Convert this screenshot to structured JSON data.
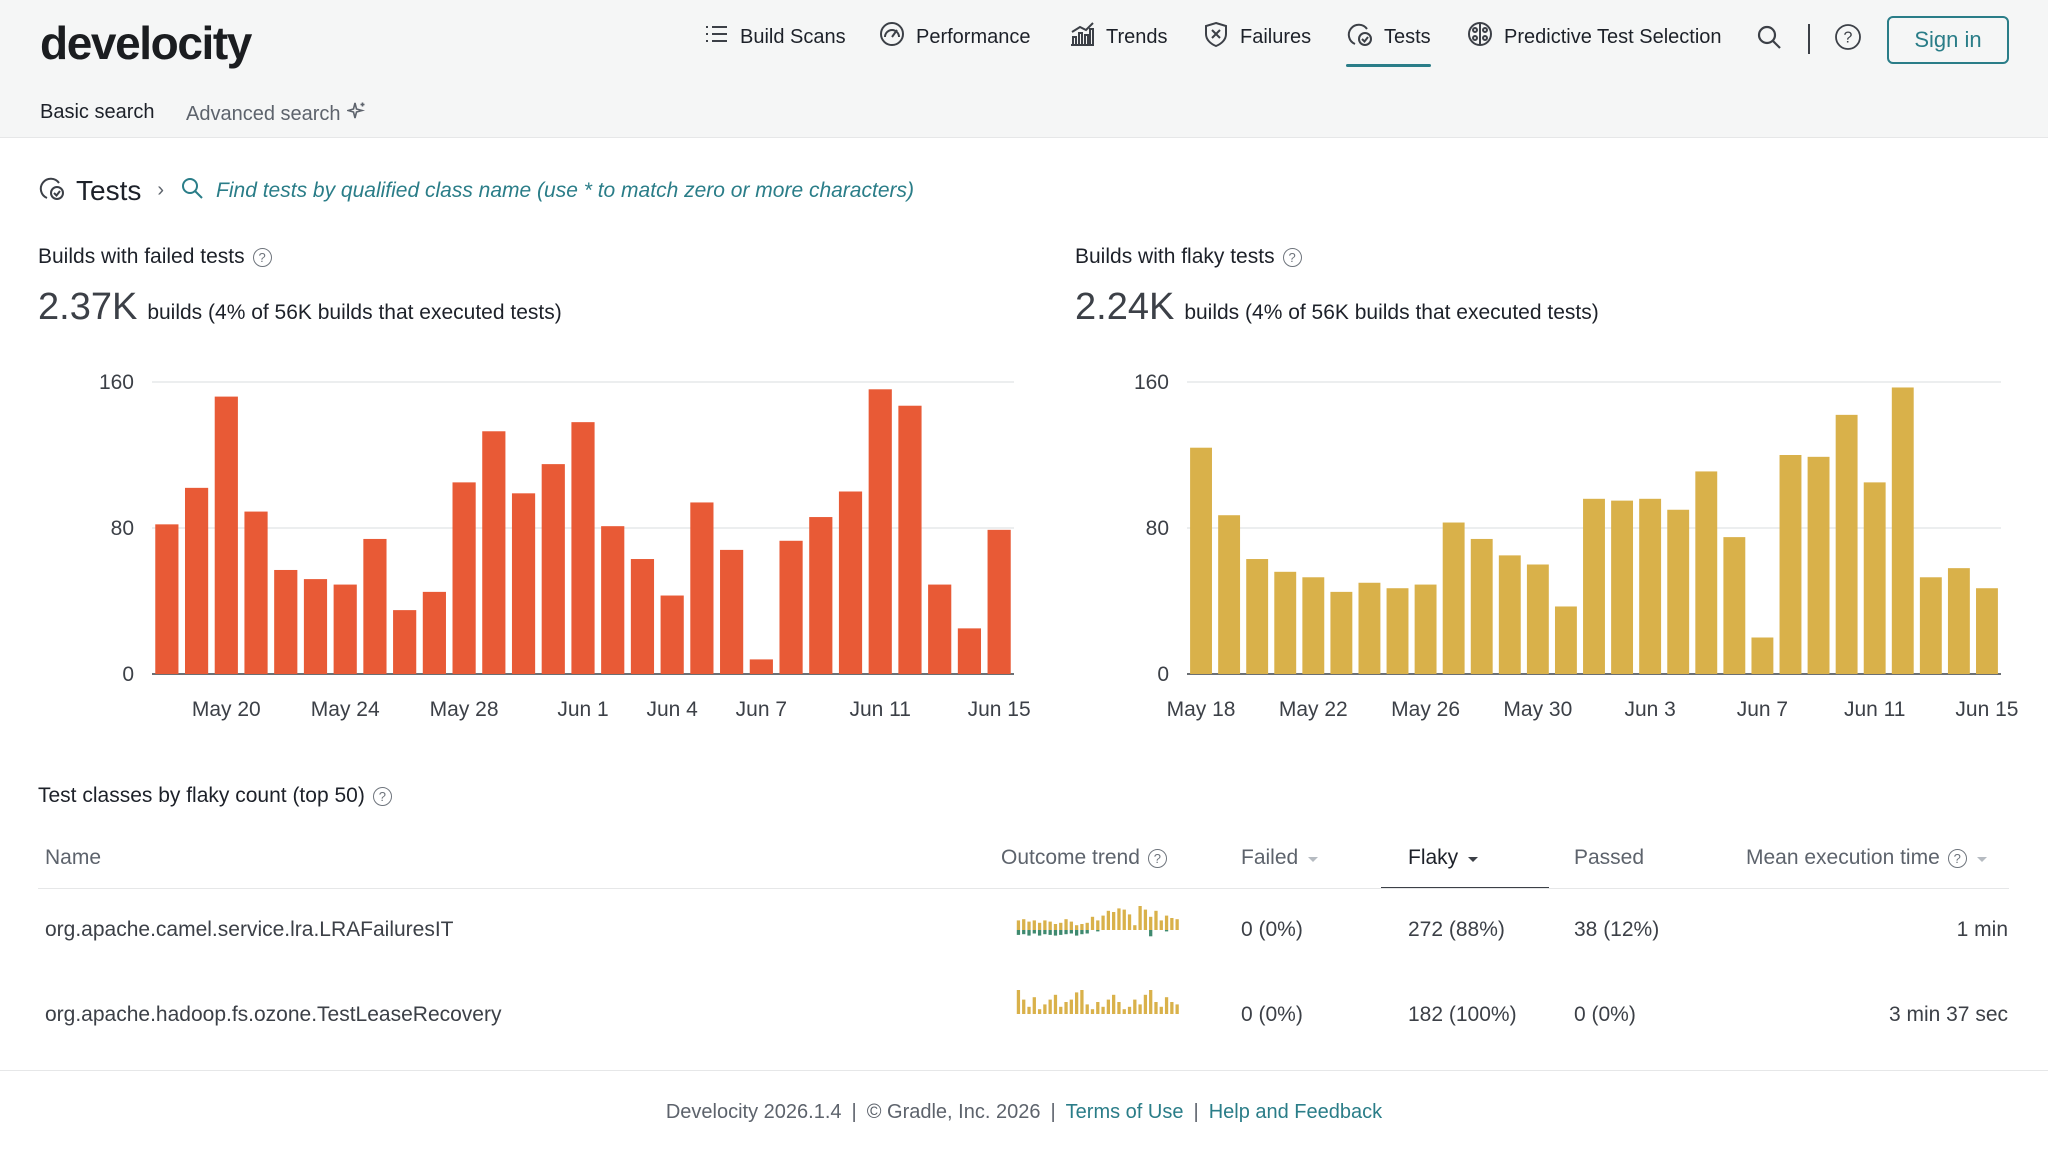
{
  "app": {
    "logo": "develocity"
  },
  "nav": {
    "items": [
      {
        "label": "Build Scans",
        "icon": "list-icon"
      },
      {
        "label": "Performance",
        "icon": "gauge-icon"
      },
      {
        "label": "Trends",
        "icon": "trend-chart-icon"
      },
      {
        "label": "Failures",
        "icon": "shield-x-icon"
      },
      {
        "label": "Tests",
        "icon": "tests-icon",
        "active": true
      },
      {
        "label": "Predictive Test Selection",
        "icon": "brain-icon"
      }
    ],
    "sign_in": "Sign in"
  },
  "subtabs": {
    "basic": "Basic search",
    "advanced": "Advanced search"
  },
  "breadcrumb": {
    "title": "Tests",
    "separator": "›",
    "search_hint": "Find tests by qualified class name (use * to match zero or more characters)"
  },
  "failed_panel": {
    "title": "Builds with failed tests",
    "stat": "2.37K",
    "stat_sub": "builds (4% of 56K builds that executed tests)"
  },
  "flaky_panel": {
    "title": "Builds with flaky tests",
    "stat": "2.24K",
    "stat_sub": "builds (4% of 56K builds that executed tests)"
  },
  "chart_data": [
    {
      "type": "bar",
      "color": "#e85a36",
      "ylim": [
        0,
        160
      ],
      "yticks": [
        0,
        80,
        160
      ],
      "xtick_labels": [
        {
          "label": "May 20",
          "index": 2
        },
        {
          "label": "May 24",
          "index": 6
        },
        {
          "label": "May 28",
          "index": 10
        },
        {
          "label": "Jun 1",
          "index": 14
        },
        {
          "label": "Jun 4",
          "index": 17
        },
        {
          "label": "Jun 7",
          "index": 20
        },
        {
          "label": "Jun 11",
          "index": 24
        },
        {
          "label": "Jun 15",
          "index": 28
        }
      ],
      "values": [
        82,
        102,
        152,
        89,
        57,
        52,
        49,
        74,
        35,
        45,
        105,
        133,
        99,
        115,
        138,
        81,
        63,
        43,
        94,
        68,
        8,
        73,
        86,
        100,
        156,
        147,
        49,
        25,
        79
      ]
    },
    {
      "type": "bar",
      "color": "#d9b14a",
      "ylim": [
        0,
        160
      ],
      "yticks": [
        0,
        80,
        160
      ],
      "xtick_labels": [
        {
          "label": "May 18",
          "index": 0
        },
        {
          "label": "May 22",
          "index": 4
        },
        {
          "label": "May 26",
          "index": 8
        },
        {
          "label": "May 30",
          "index": 12
        },
        {
          "label": "Jun 3",
          "index": 16
        },
        {
          "label": "Jun 7",
          "index": 20
        },
        {
          "label": "Jun 11",
          "index": 24
        },
        {
          "label": "Jun 15",
          "index": 28
        }
      ],
      "values": [
        124,
        87,
        63,
        56,
        53,
        45,
        50,
        47,
        49,
        83,
        74,
        65,
        60,
        37,
        96,
        95,
        96,
        90,
        111,
        75,
        20,
        120,
        119,
        142,
        105,
        157,
        53,
        58,
        47
      ]
    }
  ],
  "table": {
    "title": "Test classes by flaky count (top 50)",
    "columns": {
      "name": "Name",
      "trend": "Outcome trend",
      "failed": "Failed",
      "flaky": "Flaky",
      "passed": "Passed",
      "mean": "Mean execution time"
    },
    "rows": [
      {
        "name": "org.apache.camel.service.lra.LRAFailuresIT",
        "failed": "0 (0%)",
        "flaky": "272 (88%)",
        "passed": "38 (12%)",
        "mean": "1 min",
        "trend": [
          [
            0.4,
            0.35
          ],
          [
            0.45,
            0.3
          ],
          [
            0.35,
            0.4
          ],
          [
            0.4,
            0.25
          ],
          [
            0.3,
            0.4
          ],
          [
            0.4,
            0.3
          ],
          [
            0.35,
            0.35
          ],
          [
            0.25,
            0.4
          ],
          [
            0.3,
            0.35
          ],
          [
            0.45,
            0.3
          ],
          [
            0.35,
            0.25
          ],
          [
            0.2,
            0.4
          ],
          [
            0.25,
            0.3
          ],
          [
            0.3,
            0.25
          ],
          [
            0.55,
            0
          ],
          [
            0.4,
            0.1
          ],
          [
            0.6,
            0
          ],
          [
            0.8,
            0
          ],
          [
            0.75,
            0
          ],
          [
            0.9,
            0
          ],
          [
            0.85,
            0
          ],
          [
            0.65,
            0
          ],
          [
            0.2,
            0
          ],
          [
            1.0,
            0
          ],
          [
            0.85,
            0
          ],
          [
            0.55,
            0.45
          ],
          [
            0.8,
            0
          ],
          [
            0.4,
            0
          ],
          [
            0.6,
            0.1
          ],
          [
            0.5,
            0
          ],
          [
            0.45,
            0
          ]
        ]
      },
      {
        "name": "org.apache.hadoop.fs.ozone.TestLeaseRecovery",
        "failed": "0 (0%)",
        "flaky": "182 (100%)",
        "passed": "0 (0%)",
        "mean": "3 min 37 sec",
        "trend": [
          [
            1.0,
            0
          ],
          [
            0.6,
            0
          ],
          [
            0.3,
            0
          ],
          [
            0.7,
            0
          ],
          [
            0.2,
            0
          ],
          [
            0.4,
            0
          ],
          [
            0.6,
            0
          ],
          [
            0.8,
            0
          ],
          [
            0.3,
            0
          ],
          [
            0.5,
            0
          ],
          [
            0.6,
            0
          ],
          [
            0.9,
            0
          ],
          [
            1.0,
            0
          ],
          [
            0.4,
            0
          ],
          [
            0.2,
            0
          ],
          [
            0.5,
            0
          ],
          [
            0.3,
            0
          ],
          [
            0.6,
            0
          ],
          [
            0.8,
            0
          ],
          [
            0.5,
            0
          ],
          [
            0.2,
            0
          ],
          [
            0.3,
            0
          ],
          [
            0.6,
            0
          ],
          [
            0.4,
            0
          ],
          [
            0.8,
            0
          ],
          [
            1.0,
            0
          ],
          [
            0.5,
            0
          ],
          [
            0.3,
            0
          ],
          [
            0.7,
            0
          ],
          [
            0.5,
            0
          ],
          [
            0.4,
            0
          ]
        ]
      }
    ]
  },
  "footer": {
    "version": "Develocity 2026.1.4",
    "copyright": "© Gradle, Inc. 2026",
    "sep": "|",
    "terms": "Terms of Use",
    "help": "Help and Feedback"
  },
  "colors": {
    "accent": "#2a7d88",
    "failed_bar": "#e85a36",
    "flaky_bar": "#d9b14a",
    "passed_spark": "#3f8a6f"
  }
}
